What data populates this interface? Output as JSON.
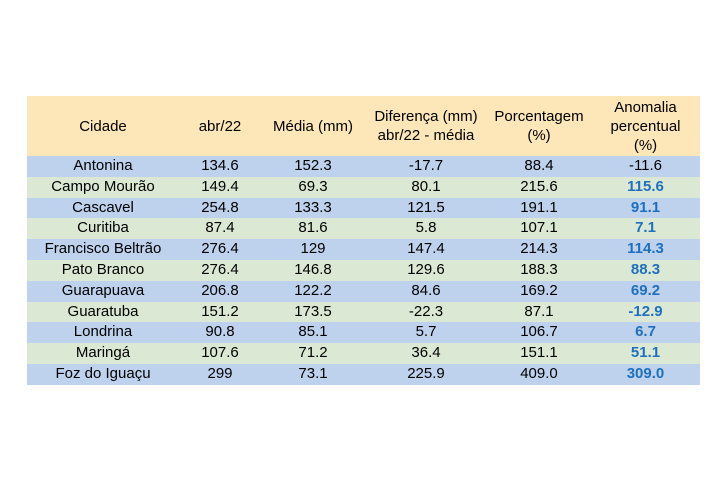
{
  "table": {
    "headers": {
      "city": "Cidade",
      "month": "abr/22",
      "mean": "Média (mm)",
      "diff_line1": "Diferença (mm)",
      "diff_line2": "abr/22 - média",
      "pct_line1": "Porcentagem",
      "pct_line2": "(%)",
      "anom_line1": "Anomalia",
      "anom_line2": "percentual",
      "anom_line3": "(%)"
    },
    "rows": [
      {
        "city": "Antonina",
        "month": "134.6",
        "mean": "152.3",
        "diff": "-17.7",
        "pct": "88.4",
        "anom": "-11.6",
        "highlight": false
      },
      {
        "city": "Campo Mourão",
        "month": "149.4",
        "mean": "69.3",
        "diff": "80.1",
        "pct": "215.6",
        "anom": "115.6",
        "highlight": true
      },
      {
        "city": "Cascavel",
        "month": "254.8",
        "mean": "133.3",
        "diff": "121.5",
        "pct": "191.1",
        "anom": "91.1",
        "highlight": true
      },
      {
        "city": "Curitiba",
        "month": "87.4",
        "mean": "81.6",
        "diff": "5.8",
        "pct": "107.1",
        "anom": "7.1",
        "highlight": true
      },
      {
        "city": "Francisco Beltrão",
        "month": "276.4",
        "mean": "129",
        "diff": "147.4",
        "pct": "214.3",
        "anom": "114.3",
        "highlight": true
      },
      {
        "city": "Pato Branco",
        "month": "276.4",
        "mean": "146.8",
        "diff": "129.6",
        "pct": "188.3",
        "anom": "88.3",
        "highlight": true
      },
      {
        "city": "Guarapuava",
        "month": "206.8",
        "mean": "122.2",
        "diff": "84.6",
        "pct": "169.2",
        "anom": "69.2",
        "highlight": true
      },
      {
        "city": "Guaratuba",
        "month": "151.2",
        "mean": "173.5",
        "diff": "-22.3",
        "pct": "87.1",
        "anom": "-12.9",
        "highlight": true
      },
      {
        "city": "Londrina",
        "month": "90.8",
        "mean": "85.1",
        "diff": "5.7",
        "pct": "106.7",
        "anom": "6.7",
        "highlight": true
      },
      {
        "city": "Maringá",
        "month": "107.6",
        "mean": "71.2",
        "diff": "36.4",
        "pct": "151.1",
        "anom": "51.1",
        "highlight": true
      },
      {
        "city": "Foz do Iguaçu",
        "month": "299",
        "mean": "73.1",
        "diff": "225.9",
        "pct": "409.0",
        "anom": "309.0",
        "highlight": true
      }
    ],
    "colors": {
      "header_bg": "#fde7b8",
      "row_blue": "#bed2ed",
      "row_green": "#dbe9d4",
      "anomaly_text": "#1f6fbf"
    }
  }
}
